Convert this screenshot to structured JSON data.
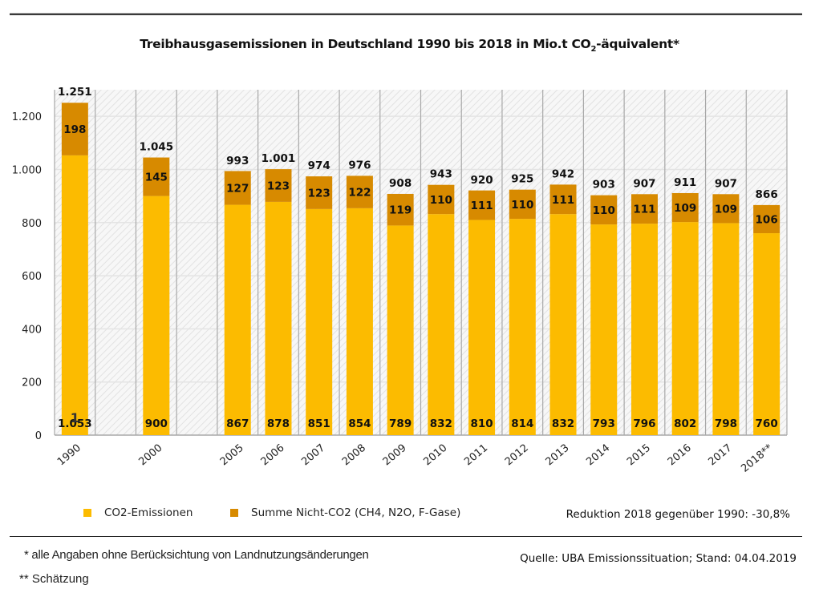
{
  "title": {
    "main": "Treibhausgasemissionen in Deutschland 1990 bis 2018 in Mio.t CO",
    "subscript": "2",
    "suffix": "-äquivalent*"
  },
  "chart_data": {
    "type": "bar",
    "stacked": true,
    "title": "Treibhausgasemissionen in Deutschland 1990 bis 2018 in Mio.t CO2-äquivalent*",
    "xlabel": "",
    "ylabel": "",
    "ylim": [
      0,
      1300
    ],
    "yticks": [
      0,
      200,
      400,
      600,
      800,
      1000,
      1200
    ],
    "ytick_labels": [
      "0",
      "200",
      "400",
      "600",
      "800",
      "1.000",
      "1.200"
    ],
    "grid": true,
    "legend_position": "bottom-left",
    "categories": [
      "1990",
      "2000",
      "2005",
      "2006",
      "2007",
      "2008",
      "2009",
      "2010",
      "2011",
      "2012",
      "2013",
      "2014",
      "2015",
      "2016",
      "2017",
      "2018**"
    ],
    "slots": [
      0,
      2,
      4,
      5,
      6,
      7,
      8,
      9,
      10,
      11,
      12,
      13,
      14,
      15,
      16,
      17
    ],
    "slot_count": 18,
    "series": [
      {
        "name": "CO2-Emissionen",
        "color": "#fcbb00",
        "values": [
          1053,
          900,
          867,
          878,
          851,
          854,
          789,
          832,
          810,
          814,
          832,
          793,
          796,
          802,
          798,
          760
        ],
        "labels": [
          "1.053",
          "900",
          "867",
          "878",
          "851",
          "854",
          "789",
          "832",
          "810",
          "814",
          "832",
          "793",
          "796",
          "802",
          "798",
          "760"
        ]
      },
      {
        "name": "Summe Nicht-CO2 (CH4, N2O, F-Gase)",
        "color": "#d78a00",
        "values": [
          198,
          145,
          127,
          123,
          123,
          122,
          119,
          110,
          111,
          110,
          111,
          110,
          111,
          109,
          109,
          106
        ],
        "labels": [
          "198",
          "145",
          "127",
          "123",
          "123",
          "122",
          "119",
          "110",
          "111",
          "110",
          "111",
          "110",
          "111",
          "109",
          "109",
          "106"
        ]
      }
    ],
    "totals": [
      1251,
      1045,
      993,
      1001,
      974,
      976,
      908,
      943,
      920,
      925,
      942,
      903,
      907,
      911,
      907,
      866
    ],
    "total_labels": [
      "1.251",
      "1.045",
      "993",
      "1.001",
      "974",
      "976",
      "908",
      "943",
      "920",
      "925",
      "942",
      "903",
      "907",
      "911",
      "907",
      "866"
    ],
    "annotations": [
      "1"
    ]
  },
  "legend": {
    "items": [
      {
        "label": "CO2-Emissionen",
        "color": "#fcbb00"
      },
      {
        "label": "Summe Nicht-CO2 (CH4, N2O, F-Gase)",
        "color": "#d78a00"
      }
    ]
  },
  "reduction_note": "Reduktion 2018 gegenüber 1990: -30,8%",
  "footnotes": {
    "note1": " * alle Angaben ohne Berücksichtung von Landnutzungsänderungen",
    "note2": "** Schätzung"
  },
  "source": "Quelle: UBA Emissionssituation; Stand: 04.04.2019"
}
